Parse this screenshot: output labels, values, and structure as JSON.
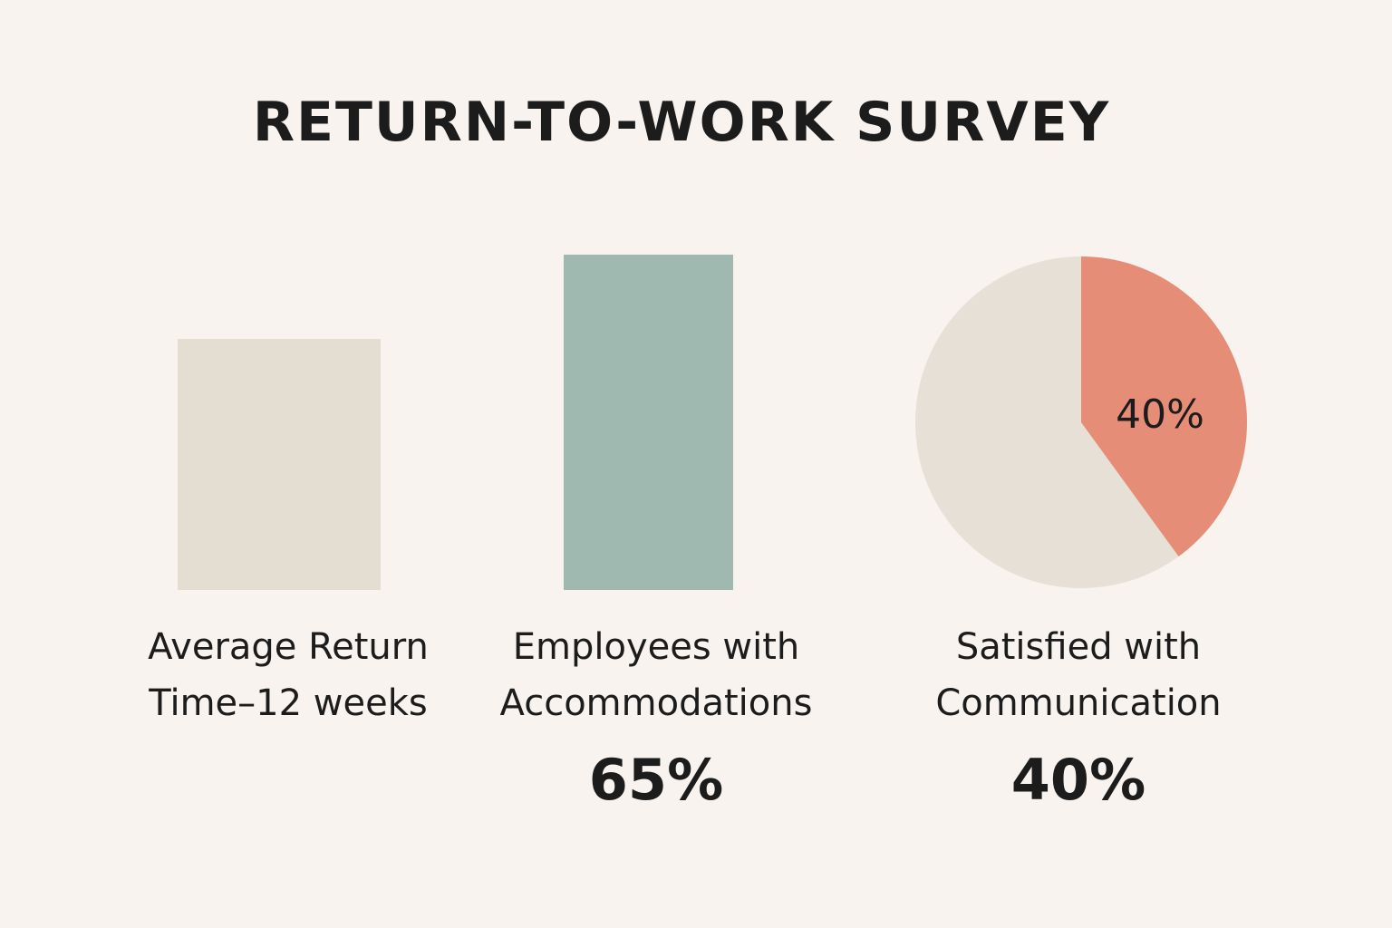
{
  "title": "RETURN-TO-WORK SURVEY",
  "colors": {
    "background": "#f8f3ee",
    "bar_1": "#e4ddd2",
    "bar_2": "#9fb8b0",
    "pie_rest": "#e7e0d7",
    "pie_slice": "#e58d76"
  },
  "chart_data": [
    {
      "type": "bar",
      "categories": [
        "Average Return Time–12 weeks",
        "Employees with Accommodations"
      ],
      "labels": [
        [
          "Average Return",
          "Time–12 weeks"
        ],
        [
          "Employees with",
          "Accommodations"
        ]
      ],
      "value_labels": [
        "",
        "65%"
      ],
      "values": [
        12,
        65
      ]
    },
    {
      "type": "pie",
      "categories": [
        "Satisfied with Communication"
      ],
      "labels": [
        "Satisfied with",
        "Communication"
      ],
      "values": [
        40,
        60
      ],
      "slice_label": "40%",
      "value_label": "40%"
    }
  ]
}
